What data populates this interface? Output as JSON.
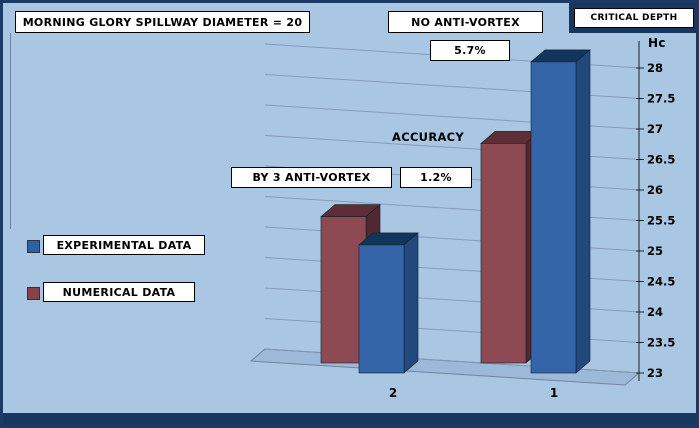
{
  "header": {
    "title": "MORNING GLORY SPILLWAY DIAMETER = 20",
    "no_anti_vortex": "NO ANTI-VORTEX",
    "critical_depth": "CRITICAL DEPTH",
    "hc": "Hc"
  },
  "annotations": {
    "accuracy": "ACCURACY",
    "no_av_value": "5.7%",
    "by3_label": "BY 3 ANTI-VORTEX",
    "by3_value": "1.2%"
  },
  "legend": [
    {
      "label": "EXPERIMENTAL DATA",
      "color": "#2d5ea6"
    },
    {
      "label": "NUMERICAL DATA",
      "color": "#8a4149"
    }
  ],
  "chart_data": {
    "type": "bar",
    "title": "MORNING GLORY SPILLWAY DIAMETER = 20",
    "categories": [
      "2",
      "1"
    ],
    "series": [
      {
        "name": "NUMERICAL DATA",
        "values": [
          25.4,
          26.6
        ],
        "color_front": "#8e4a52",
        "color_top": "#5e2d35",
        "color_side": "#512830"
      },
      {
        "name": "EXPERIMENTAL DATA",
        "values": [
          25.1,
          28.1
        ],
        "color_front": "#3465a8",
        "color_top": "#12355e",
        "color_side": "#23497c"
      }
    ],
    "xlabel": "",
    "ylabel": "Hc",
    "ylim": [
      23,
      28
    ],
    "ytick_step": 0.5,
    "grid": true,
    "legend_position": "left",
    "style": "3d-column",
    "annotations": [
      {
        "group": "1",
        "label": "NO ANTI-VORTEX",
        "accuracy": "5.7%"
      },
      {
        "group": "2",
        "label": "BY 3 ANTI-VORTEX",
        "accuracy": "1.2%"
      }
    ],
    "axis_side": "right",
    "grid_color": "#8596b5"
  }
}
